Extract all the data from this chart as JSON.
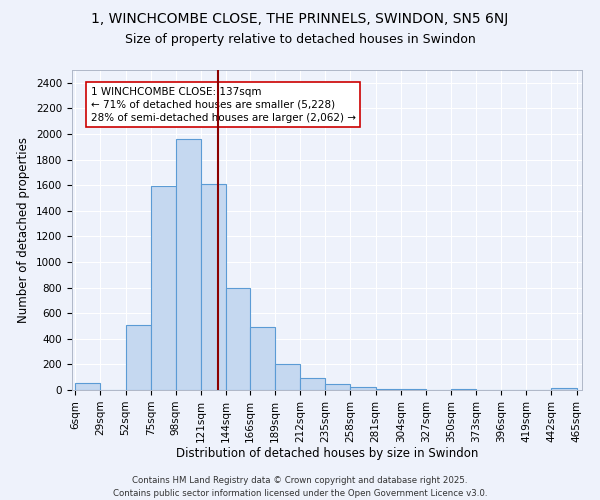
{
  "title": "1, WINCHCOMBE CLOSE, THE PRINNELS, SWINDON, SN5 6NJ",
  "subtitle": "Size of property relative to detached houses in Swindon",
  "xlabel": "Distribution of detached houses by size in Swindon",
  "ylabel": "Number of detached properties",
  "bar_edges": [
    6,
    29,
    52,
    75,
    98,
    121,
    144,
    166,
    189,
    212,
    235,
    258,
    281,
    304,
    327,
    350,
    373,
    396,
    419,
    442,
    465
  ],
  "bar_heights": [
    55,
    0,
    510,
    1590,
    1960,
    1610,
    800,
    490,
    200,
    90,
    45,
    25,
    10,
    5,
    0,
    5,
    0,
    0,
    0,
    15
  ],
  "bar_color": "#c5d8f0",
  "bar_edgecolor": "#5b9bd5",
  "property_line_x": 137,
  "property_line_color": "#8b0000",
  "annotation_text": "1 WINCHCOMBE CLOSE: 137sqm\n← 71% of detached houses are smaller (5,228)\n28% of semi-detached houses are larger (2,062) →",
  "annotation_box_edgecolor": "#cc0000",
  "annotation_box_facecolor": "#ffffff",
  "ylim": [
    0,
    2500
  ],
  "yticks": [
    0,
    200,
    400,
    600,
    800,
    1000,
    1200,
    1400,
    1600,
    1800,
    2000,
    2200,
    2400
  ],
  "bg_color": "#eef2fb",
  "grid_color": "#ffffff",
  "footer": "Contains HM Land Registry data © Crown copyright and database right 2025.\nContains public sector information licensed under the Open Government Licence v3.0.",
  "title_fontsize": 10,
  "subtitle_fontsize": 9,
  "axis_fontsize": 8.5,
  "tick_fontsize": 7.5,
  "annotation_fontsize": 7.5
}
